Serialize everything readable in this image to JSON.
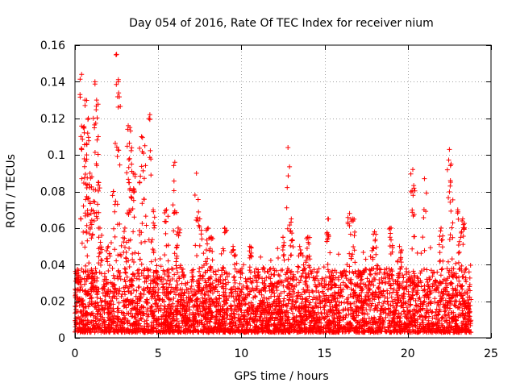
{
  "chart_data": {
    "type": "scatter",
    "title": "Day 054 of 2016, Rate Of TEC Index for receiver nium",
    "xlabel": "GPS time / hours",
    "ylabel": "ROTI / TECUs",
    "xlim": [
      0,
      25
    ],
    "ylim": [
      0,
      0.16
    ],
    "xticks": [
      0,
      5,
      10,
      15,
      20,
      25
    ],
    "xtick_labels": [
      "0",
      "5",
      "10",
      "15",
      "20",
      "25"
    ],
    "yticks": [
      0,
      0.02,
      0.04,
      0.06,
      0.08,
      0.1,
      0.12,
      0.14,
      0.16
    ],
    "ytick_labels": [
      "0",
      "0.02",
      "0.04",
      "0.06",
      "0.08",
      "0.1",
      "0.12",
      "0.14",
      "0.16"
    ],
    "grid": true,
    "marker": "+",
    "marker_color": "#ff0000",
    "series": [
      {
        "name": "ROTI",
        "description_points_x": [
          0.2,
          0.4,
          0.5,
          0.6,
          0.7,
          0.8,
          0.9,
          1.0,
          1.1,
          1.2,
          1.3,
          1.4,
          1.5,
          2.0,
          2.3,
          2.5,
          2.6,
          3.0,
          3.2,
          3.3,
          3.4,
          3.5,
          4.0,
          4.2,
          4.5,
          4.7,
          5.5,
          6.0,
          6.2,
          7.3,
          7.5,
          8.0,
          8.2,
          9.0,
          9.5,
          10.5,
          12.5,
          12.8,
          13.0,
          13.5,
          14.0,
          15.2,
          16.5,
          16.7,
          18.0,
          19.0,
          19.5,
          20.3,
          21.0,
          22.0,
          22.5,
          22.6,
          23.0,
          23.3
        ],
        "description_points_y": [
          0.03,
          0.144,
          0.115,
          0.13,
          0.1,
          0.12,
          0.09,
          0.07,
          0.12,
          0.14,
          0.13,
          0.11,
          0.06,
          0.05,
          0.08,
          0.155,
          0.14,
          0.06,
          0.116,
          0.115,
          0.095,
          0.09,
          0.11,
          0.105,
          0.122,
          0.07,
          0.07,
          0.096,
          0.06,
          0.09,
          0.065,
          0.06,
          0.055,
          0.06,
          0.05,
          0.05,
          0.055,
          0.104,
          0.065,
          0.05,
          0.055,
          0.065,
          0.068,
          0.065,
          0.058,
          0.06,
          0.05,
          0.092,
          0.087,
          0.06,
          0.103,
          0.095,
          0.07,
          0.065
        ]
      }
    ]
  }
}
